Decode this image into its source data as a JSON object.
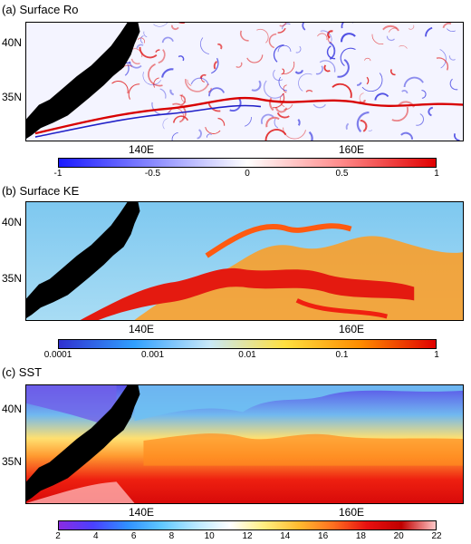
{
  "lat_labels": [
    "40N",
    "35N"
  ],
  "lon_labels": [
    "140E",
    "160E"
  ],
  "panels": [
    {
      "id": "a",
      "title": "(a) Surface Ro",
      "colorbar": {
        "ticks": [
          "-1",
          "-0.5",
          "0",
          "0.5",
          "1"
        ],
        "colors": [
          "#1a1aff",
          "#8a8aff",
          "#ffffff",
          "#ff8a8a",
          "#e00000"
        ]
      }
    },
    {
      "id": "b",
      "title": "(b) Surface KE",
      "colorbar": {
        "ticks": [
          "0.0001",
          "0.001",
          "0.01",
          "0.1",
          "1"
        ],
        "scale": "log",
        "colors": [
          "#3030d0",
          "#30a0ff",
          "#c8e8f8",
          "#ffe040",
          "#ff8c00",
          "#e00000"
        ]
      }
    },
    {
      "id": "c",
      "title": "(c) SST",
      "colorbar": {
        "ticks": [
          "2",
          "4",
          "6",
          "8",
          "10",
          "12",
          "14",
          "16",
          "18",
          "20",
          "22"
        ],
        "colors": [
          "#8a2be2",
          "#4a40ff",
          "#3090ff",
          "#60c8ff",
          "#b8e8ff",
          "#ffffff",
          "#ffee80",
          "#ffbb30",
          "#ff7020",
          "#e81010",
          "#c00000",
          "#ffc8c8"
        ]
      }
    }
  ]
}
